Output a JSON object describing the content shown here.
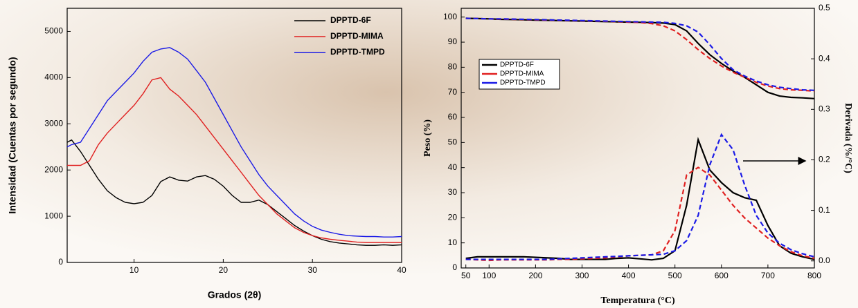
{
  "chart_data": [
    {
      "type": "line",
      "xlabel": "Grados (2θ)",
      "ylabel": "Intensidad (Cuentas por segundo)",
      "xlim": [
        2.5,
        40
      ],
      "ylim": [
        0,
        5500
      ],
      "xticks": [
        10,
        20,
        30,
        40
      ],
      "yticks": [
        0,
        1000,
        2000,
        3000,
        4000,
        5000
      ],
      "legend": "upper right",
      "x": [
        2.5,
        3,
        4,
        5,
        6,
        7,
        8,
        9,
        10,
        11,
        12,
        13,
        14,
        15,
        16,
        17,
        18,
        19,
        20,
        21,
        22,
        23,
        24,
        25,
        26,
        27,
        28,
        29,
        30,
        31,
        32,
        33,
        34,
        35,
        36,
        37,
        38,
        39,
        40
      ],
      "series": [
        {
          "name": "DPPTD-6F",
          "color": "#000000",
          "values": [
            2600,
            2650,
            2400,
            2100,
            1800,
            1550,
            1400,
            1300,
            1270,
            1300,
            1450,
            1750,
            1850,
            1780,
            1760,
            1850,
            1880,
            1800,
            1650,
            1450,
            1300,
            1300,
            1350,
            1250,
            1100,
            950,
            800,
            680,
            580,
            500,
            450,
            420,
            400,
            380,
            370,
            370,
            380,
            370,
            380
          ]
        },
        {
          "name": "DPPTD-MIMA",
          "color": "#e02020",
          "values": [
            2100,
            2100,
            2100,
            2200,
            2550,
            2800,
            3000,
            3200,
            3400,
            3650,
            3950,
            4000,
            3750,
            3600,
            3400,
            3200,
            2950,
            2700,
            2450,
            2200,
            1950,
            1700,
            1450,
            1250,
            1050,
            900,
            750,
            650,
            580,
            530,
            500,
            480,
            460,
            440,
            430,
            430,
            430,
            430,
            430
          ]
        },
        {
          "name": "DPPTD-TMPD",
          "color": "#1a1ae6",
          "values": [
            2500,
            2550,
            2600,
            2900,
            3200,
            3500,
            3700,
            3900,
            4100,
            4350,
            4550,
            4620,
            4650,
            4550,
            4400,
            4150,
            3900,
            3550,
            3200,
            2850,
            2500,
            2200,
            1900,
            1650,
            1450,
            1250,
            1050,
            900,
            780,
            700,
            650,
            610,
            580,
            570,
            560,
            560,
            550,
            550,
            560
          ]
        }
      ]
    },
    {
      "type": "line",
      "xlabel": "Temperatura (°C)",
      "ylabel": "Peso (%)",
      "y2label": "Derivada (%/°C)",
      "xlim": [
        40,
        800
      ],
      "ylim": [
        0,
        103.5
      ],
      "y2lim": [
        -0.014,
        0.5
      ],
      "xticks": [
        50,
        100,
        200,
        300,
        400,
        500,
        600,
        700,
        800
      ],
      "yticks": [
        0,
        10,
        20,
        30,
        40,
        50,
        60,
        70,
        80,
        90,
        100
      ],
      "y2ticks": [
        {
          "value": 0,
          "label": "0.0"
        },
        0.1,
        0.2,
        0.3,
        0.4,
        0.5
      ],
      "legend": "upper left",
      "x": [
        50,
        75,
        100,
        125,
        150,
        175,
        200,
        225,
        250,
        275,
        300,
        325,
        350,
        375,
        400,
        425,
        450,
        475,
        500,
        525,
        550,
        575,
        600,
        625,
        650,
        675,
        700,
        725,
        750,
        775,
        800
      ],
      "series": [
        {
          "name": "DPPTD-6F",
          "color": "#000000",
          "dash": false,
          "values": [
            99.5,
            99.4,
            99.3,
            99.1,
            99.0,
            98.9,
            98.8,
            98.7,
            98.6,
            98.5,
            98.4,
            98.3,
            98.2,
            98.1,
            98.0,
            97.9,
            97.8,
            97.6,
            97.0,
            94.5,
            89.5,
            85,
            81.5,
            78.5,
            76,
            73,
            70,
            68.5,
            68,
            67.8,
            67.5
          ],
          "y2_values": [
            0.005,
            0.008,
            0.008,
            0.008,
            0.008,
            0.008,
            0.007,
            0.006,
            0.005,
            0.003,
            0.003,
            0.003,
            0.003,
            0.005,
            0.006,
            0.004,
            0.002,
            0.005,
            0.02,
            0.11,
            0.24,
            0.18,
            0.155,
            0.135,
            0.125,
            0.12,
            0.07,
            0.03,
            0.015,
            0.008,
            0.003
          ]
        },
        {
          "name": "DPPTD-MIMA",
          "color": "#e02020",
          "dash": true,
          "values": [
            99.5,
            99.4,
            99.3,
            99.2,
            99.1,
            99.0,
            98.9,
            98.8,
            98.7,
            98.6,
            98.5,
            98.4,
            98.3,
            98.2,
            98.0,
            97.8,
            97.4,
            96.5,
            94.5,
            91,
            87,
            83.5,
            80.5,
            78,
            76,
            74,
            72.5,
            71.5,
            71,
            70.8,
            70.5
          ],
          "y2_values": [
            0.003,
            0.002,
            0.001,
            0.002,
            0.002,
            0.002,
            0.002,
            0.002,
            0.003,
            0.003,
            0.004,
            0.005,
            0.006,
            0.008,
            0.01,
            0.011,
            0.012,
            0.02,
            0.06,
            0.17,
            0.185,
            0.17,
            0.14,
            0.11,
            0.085,
            0.065,
            0.045,
            0.03,
            0.018,
            0.01,
            0.005
          ]
        },
        {
          "name": "DPPTD-TMPD",
          "color": "#1a1ae6",
          "dash": true,
          "values": [
            99.5,
            99.4,
            99.3,
            99.3,
            99.2,
            99.1,
            99.0,
            98.9,
            98.8,
            98.7,
            98.6,
            98.5,
            98.4,
            98.3,
            98.2,
            98.1,
            98.0,
            97.9,
            97.5,
            96.5,
            94,
            89,
            83.5,
            79,
            76.5,
            74.5,
            73,
            72,
            71.5,
            71,
            70.8
          ],
          "y2_values": [
            0.003,
            0.003,
            0.003,
            0.003,
            0.003,
            0.003,
            0.003,
            0.003,
            0.004,
            0.005,
            0.006,
            0.007,
            0.008,
            0.009,
            0.01,
            0.011,
            0.012,
            0.013,
            0.02,
            0.04,
            0.09,
            0.19,
            0.25,
            0.22,
            0.15,
            0.09,
            0.055,
            0.035,
            0.022,
            0.014,
            0.008
          ]
        }
      ]
    }
  ]
}
